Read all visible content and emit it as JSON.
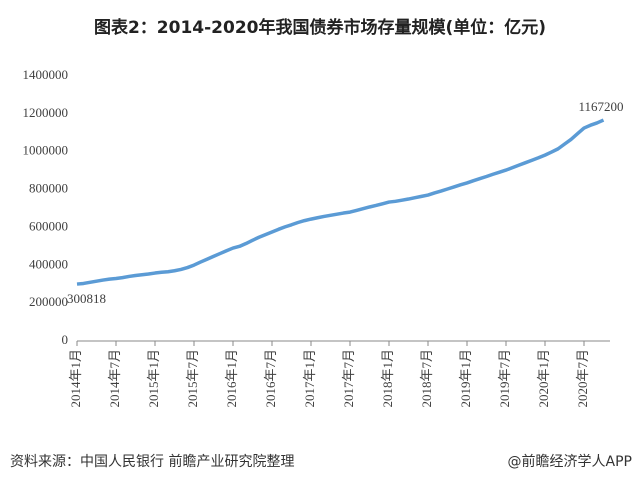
{
  "chart_data": {
    "type": "line",
    "title": "图表2：2014-2020年我国债券市场存量规模(单位：亿元)",
    "source": "资料来源：中国人民银行 前瞻产业研究院整理",
    "credit": "@前瞻经济学人APP",
    "categories": [
      "2014年1月",
      null,
      null,
      null,
      null,
      null,
      "2014年7月",
      null,
      null,
      null,
      null,
      null,
      "2015年1月",
      null,
      null,
      null,
      null,
      null,
      "2015年7月",
      null,
      null,
      null,
      null,
      null,
      "2016年1月",
      null,
      null,
      null,
      null,
      null,
      "2016年7月",
      null,
      null,
      null,
      null,
      null,
      "2017年1月",
      null,
      null,
      null,
      null,
      null,
      "2017年7月",
      null,
      null,
      null,
      null,
      null,
      "2018年1月",
      null,
      null,
      null,
      null,
      null,
      "2018年7月",
      null,
      null,
      null,
      null,
      null,
      "2019年1月",
      null,
      null,
      null,
      null,
      null,
      "2019年7月",
      null,
      null,
      null,
      null,
      null,
      "2020年1月",
      null,
      null,
      null,
      null,
      null,
      "2020年7月",
      null,
      null,
      null
    ],
    "series": [
      {
        "color": "#5b9bd5",
        "values": [
          300818,
          304000,
          310000,
          316000,
          322000,
          327000,
          330000,
          335000,
          341000,
          346000,
          350000,
          354000,
          359000,
          363000,
          366000,
          371000,
          378000,
          388000,
          401000,
          417000,
          432000,
          447000,
          462000,
          477000,
          491000,
          500000,
          515000,
          532000,
          548000,
          562000,
          576000,
          590000,
          603000,
          614000,
          626000,
          636000,
          644000,
          651000,
          658000,
          664000,
          670000,
          676000,
          681000,
          690000,
          699000,
          708000,
          716000,
          725000,
          734000,
          738000,
          744000,
          750000,
          757000,
          764000,
          771000,
          782000,
          792000,
          803000,
          814000,
          825000,
          835000,
          847000,
          858000,
          869000,
          881000,
          892000,
          903000,
          916000,
          929000,
          942000,
          955000,
          968000,
          982000,
          998000,
          1015000,
          1040000,
          1065000,
          1095000,
          1125000,
          1140000,
          1152000,
          1167200
        ]
      }
    ],
    "ylim": [
      0,
      1400000
    ],
    "yticks": [
      0,
      200000,
      400000,
      600000,
      800000,
      1000000,
      1200000,
      1400000
    ],
    "grid": false
  }
}
